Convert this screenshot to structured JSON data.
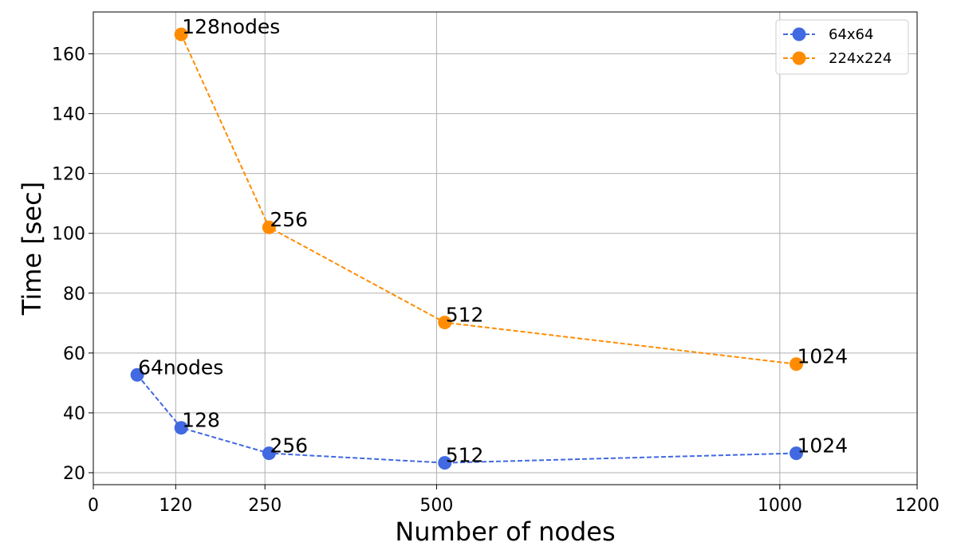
{
  "chart_data": {
    "type": "line",
    "xlabel": "Number of nodes",
    "ylabel": "Time [sec]",
    "xlim": [
      0,
      1200
    ],
    "ylim": [
      16,
      174
    ],
    "xticks": [
      0,
      120,
      250,
      500,
      1000,
      1200
    ],
    "yticks": [
      20,
      40,
      60,
      80,
      100,
      120,
      140,
      160
    ],
    "grid": true,
    "legend_position": "top-right",
    "series": [
      {
        "name": "64x64",
        "color": "#4169E1",
        "line_style": "dashed",
        "x": [
          64,
          128,
          256,
          512,
          1024
        ],
        "y": [
          52.7,
          35.0,
          26.5,
          23.3,
          26.5
        ],
        "labels": [
          "64nodes",
          "128",
          "256",
          "512",
          "1024"
        ]
      },
      {
        "name": "224x224",
        "color": "#FF8C00",
        "line_style": "dashed",
        "x": [
          128,
          256,
          512,
          1024
        ],
        "y": [
          166.5,
          102.0,
          70.2,
          56.3
        ],
        "labels": [
          "128nodes",
          "256",
          "512",
          "1024"
        ]
      }
    ]
  }
}
